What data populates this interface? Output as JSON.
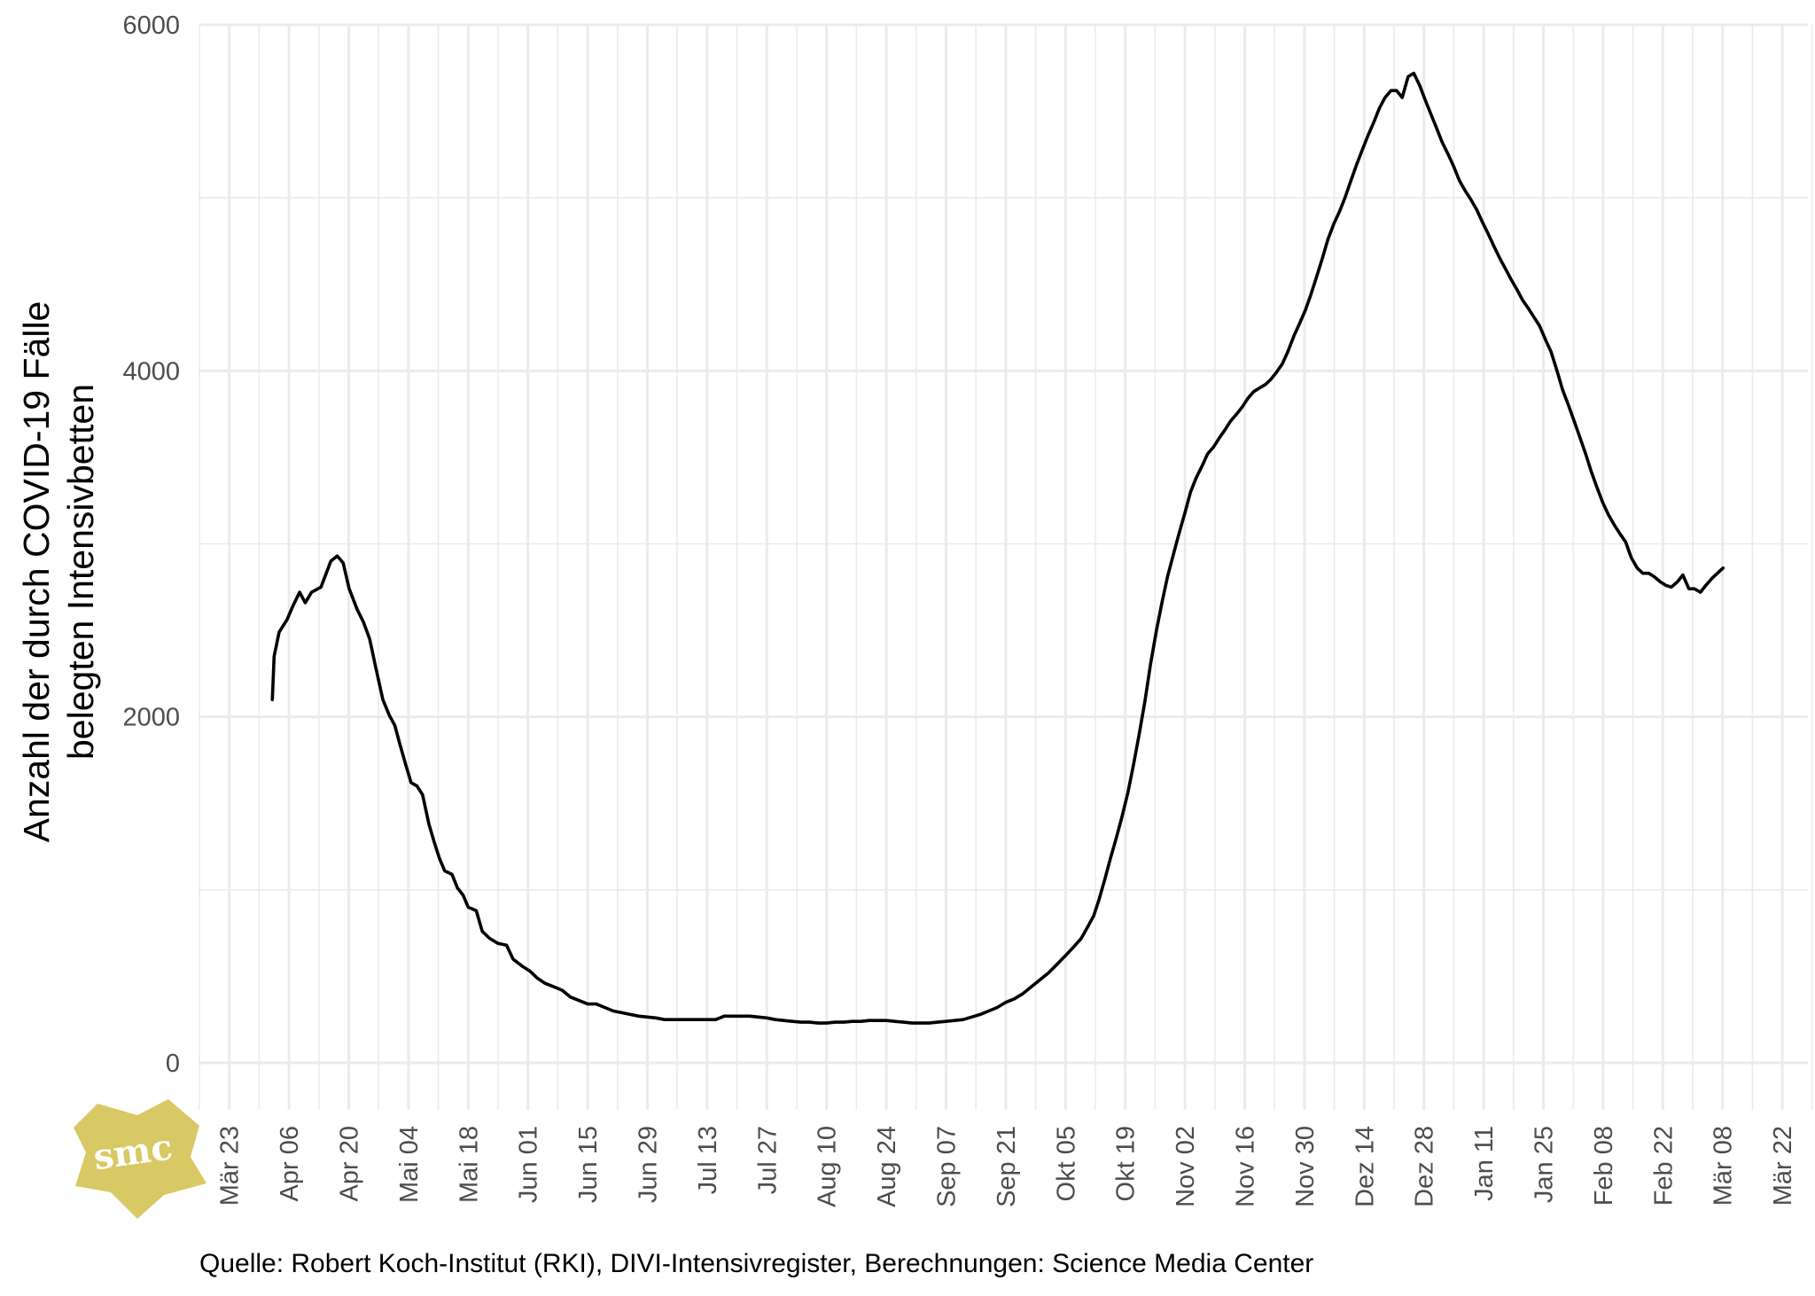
{
  "chart_data": {
    "type": "line",
    "ylabel_line1": "Anzahl der durch COVID-19 Fälle",
    "ylabel_line2": "belegten Intensivbetten",
    "caption": "Quelle: Robert Koch-Institut (RKI), DIVI-Intensivregister, Berechnungen: Science Media Center",
    "ylim": [
      -220,
      6000
    ],
    "y_ticks": [
      0,
      2000,
      4000,
      6000
    ],
    "y_minor": [
      1000,
      3000,
      5000
    ],
    "x_range_days": [
      -7,
      370
    ],
    "x_ticks": [
      {
        "day": 0,
        "label": "Mär 23"
      },
      {
        "day": 14,
        "label": "Apr 06"
      },
      {
        "day": 28,
        "label": "Apr 20"
      },
      {
        "day": 42,
        "label": "Mai 04"
      },
      {
        "day": 56,
        "label": "Mai 18"
      },
      {
        "day": 70,
        "label": "Jun 01"
      },
      {
        "day": 84,
        "label": "Jun 15"
      },
      {
        "day": 98,
        "label": "Jun 29"
      },
      {
        "day": 112,
        "label": "Jul 13"
      },
      {
        "day": 126,
        "label": "Jul 27"
      },
      {
        "day": 140,
        "label": "Aug 10"
      },
      {
        "day": 154,
        "label": "Aug 24"
      },
      {
        "day": 168,
        "label": "Sep 07"
      },
      {
        "day": 182,
        "label": "Sep 21"
      },
      {
        "day": 196,
        "label": "Okt 05"
      },
      {
        "day": 210,
        "label": "Okt 19"
      },
      {
        "day": 224,
        "label": "Nov 02"
      },
      {
        "day": 238,
        "label": "Nov 16"
      },
      {
        "day": 252,
        "label": "Nov 30"
      },
      {
        "day": 266,
        "label": "Dez 14"
      },
      {
        "day": 280,
        "label": "Dez 28"
      },
      {
        "day": 294,
        "label": "Jan 11"
      },
      {
        "day": 308,
        "label": "Jan 25"
      },
      {
        "day": 322,
        "label": "Feb 08"
      },
      {
        "day": 336,
        "label": "Feb 22"
      },
      {
        "day": 350,
        "label": "Mär 08"
      },
      {
        "day": 364,
        "label": "Mär 22"
      }
    ],
    "series": [
      {
        "color": "#000000",
        "points": [
          [
            10.1,
            2100
          ],
          [
            10.5,
            2350
          ],
          [
            11.7,
            2490
          ],
          [
            13.5,
            2560
          ],
          [
            14.9,
            2640
          ],
          [
            16.5,
            2720
          ],
          [
            17.8,
            2660
          ],
          [
            19.3,
            2720
          ],
          [
            21.5,
            2750
          ],
          [
            23.8,
            2900
          ],
          [
            25.3,
            2930
          ],
          [
            26.7,
            2890
          ],
          [
            28.1,
            2740
          ],
          [
            30.0,
            2620
          ],
          [
            31.4,
            2550
          ],
          [
            32.9,
            2450
          ],
          [
            34.3,
            2290
          ],
          [
            36.0,
            2100
          ],
          [
            37.5,
            2010
          ],
          [
            38.8,
            1950
          ],
          [
            40.0,
            1840
          ],
          [
            41.4,
            1720
          ],
          [
            42.6,
            1620
          ],
          [
            44.0,
            1600
          ],
          [
            45.3,
            1550
          ],
          [
            46.8,
            1380
          ],
          [
            48.1,
            1270
          ],
          [
            49.3,
            1180
          ],
          [
            50.5,
            1110
          ],
          [
            52.2,
            1090
          ],
          [
            53.5,
            1010
          ],
          [
            54.8,
            970
          ],
          [
            56.0,
            900
          ],
          [
            57.9,
            880
          ],
          [
            59.3,
            760
          ],
          [
            61.0,
            720
          ],
          [
            63.0,
            690
          ],
          [
            65.0,
            680
          ],
          [
            66.5,
            600
          ],
          [
            68.6,
            560
          ],
          [
            70.5,
            530
          ],
          [
            72.2,
            490
          ],
          [
            74.0,
            460
          ],
          [
            76.0,
            440
          ],
          [
            78.0,
            420
          ],
          [
            80.0,
            380
          ],
          [
            82.0,
            360
          ],
          [
            84.0,
            340
          ],
          [
            86.0,
            340
          ],
          [
            88.0,
            320
          ],
          [
            90.0,
            300
          ],
          [
            92.0,
            290
          ],
          [
            94.0,
            280
          ],
          [
            96.0,
            270
          ],
          [
            98.0,
            265
          ],
          [
            100.0,
            260
          ],
          [
            102.0,
            250
          ],
          [
            104.0,
            250
          ],
          [
            106.0,
            250
          ],
          [
            108.0,
            250
          ],
          [
            110.0,
            250
          ],
          [
            112.0,
            250
          ],
          [
            114.0,
            250
          ],
          [
            116.0,
            270
          ],
          [
            118.0,
            270
          ],
          [
            120.0,
            270
          ],
          [
            122.0,
            270
          ],
          [
            124.0,
            265
          ],
          [
            126.0,
            260
          ],
          [
            128.0,
            250
          ],
          [
            130.0,
            245
          ],
          [
            132.0,
            240
          ],
          [
            134.0,
            235
          ],
          [
            136.0,
            235
          ],
          [
            138.0,
            230
          ],
          [
            140.0,
            230
          ],
          [
            142.0,
            235
          ],
          [
            144.0,
            235
          ],
          [
            146.0,
            240
          ],
          [
            148.0,
            240
          ],
          [
            150.0,
            245
          ],
          [
            152.0,
            245
          ],
          [
            154.0,
            245
          ],
          [
            156.0,
            240
          ],
          [
            158.0,
            235
          ],
          [
            160.0,
            230
          ],
          [
            162.0,
            230
          ],
          [
            164.0,
            230
          ],
          [
            166.0,
            235
          ],
          [
            168.0,
            240
          ],
          [
            170.0,
            245
          ],
          [
            172.0,
            250
          ],
          [
            174.0,
            265
          ],
          [
            176.0,
            280
          ],
          [
            178.0,
            300
          ],
          [
            180.0,
            320
          ],
          [
            182.0,
            350
          ],
          [
            184.0,
            370
          ],
          [
            186.0,
            400
          ],
          [
            188.0,
            440
          ],
          [
            190.0,
            480
          ],
          [
            192.0,
            520
          ],
          [
            194.0,
            570
          ],
          [
            196.0,
            620
          ],
          [
            197.9,
            670
          ],
          [
            199.7,
            720
          ],
          [
            201.3,
            790
          ],
          [
            202.6,
            850
          ],
          [
            203.8,
            940
          ],
          [
            205.2,
            1060
          ],
          [
            206.5,
            1180
          ],
          [
            207.9,
            1300
          ],
          [
            209.2,
            1420
          ],
          [
            210.6,
            1560
          ],
          [
            211.9,
            1720
          ],
          [
            213.2,
            1890
          ],
          [
            214.6,
            2090
          ],
          [
            215.9,
            2300
          ],
          [
            217.3,
            2500
          ],
          [
            218.6,
            2660
          ],
          [
            219.9,
            2810
          ],
          [
            221.3,
            2940
          ],
          [
            222.6,
            3060
          ],
          [
            224.0,
            3180
          ],
          [
            225.3,
            3300
          ],
          [
            226.6,
            3380
          ],
          [
            228.0,
            3450
          ],
          [
            229.3,
            3520
          ],
          [
            230.7,
            3560
          ],
          [
            232.0,
            3610
          ],
          [
            233.4,
            3660
          ],
          [
            234.7,
            3710
          ],
          [
            236.1,
            3750
          ],
          [
            237.4,
            3790
          ],
          [
            238.7,
            3840
          ],
          [
            240.1,
            3880
          ],
          [
            241.4,
            3900
          ],
          [
            242.8,
            3920
          ],
          [
            244.1,
            3950
          ],
          [
            245.4,
            3990
          ],
          [
            246.8,
            4040
          ],
          [
            248.1,
            4110
          ],
          [
            249.5,
            4200
          ],
          [
            250.8,
            4270
          ],
          [
            252.2,
            4350
          ],
          [
            253.5,
            4440
          ],
          [
            254.8,
            4540
          ],
          [
            256.2,
            4650
          ],
          [
            257.5,
            4760
          ],
          [
            258.9,
            4850
          ],
          [
            260.2,
            4920
          ],
          [
            261.5,
            5000
          ],
          [
            262.9,
            5100
          ],
          [
            264.2,
            5190
          ],
          [
            265.6,
            5280
          ],
          [
            266.9,
            5360
          ],
          [
            268.3,
            5440
          ],
          [
            269.6,
            5520
          ],
          [
            270.9,
            5580
          ],
          [
            272.3,
            5620
          ],
          [
            273.6,
            5620
          ],
          [
            274.9,
            5580
          ],
          [
            276.3,
            5700
          ],
          [
            277.6,
            5720
          ],
          [
            279.0,
            5650
          ],
          [
            280.4,
            5560
          ],
          [
            281.7,
            5480
          ],
          [
            283.0,
            5400
          ],
          [
            284.3,
            5320
          ],
          [
            285.7,
            5250
          ],
          [
            287.0,
            5180
          ],
          [
            288.3,
            5100
          ],
          [
            289.7,
            5040
          ],
          [
            291.0,
            4990
          ],
          [
            292.4,
            4930
          ],
          [
            293.7,
            4860
          ],
          [
            295.1,
            4790
          ],
          [
            296.4,
            4720
          ],
          [
            297.8,
            4650
          ],
          [
            299.1,
            4590
          ],
          [
            300.4,
            4530
          ],
          [
            301.8,
            4470
          ],
          [
            303.1,
            4410
          ],
          [
            304.5,
            4360
          ],
          [
            305.8,
            4310
          ],
          [
            307.1,
            4260
          ],
          [
            308.5,
            4180
          ],
          [
            309.8,
            4110
          ],
          [
            311.2,
            4000
          ],
          [
            312.5,
            3890
          ],
          [
            313.9,
            3800
          ],
          [
            315.2,
            3710
          ],
          [
            316.5,
            3620
          ],
          [
            317.9,
            3520
          ],
          [
            319.2,
            3420
          ],
          [
            320.5,
            3330
          ],
          [
            321.9,
            3240
          ],
          [
            323.2,
            3170
          ],
          [
            324.6,
            3110
          ],
          [
            325.9,
            3060
          ],
          [
            327.3,
            3010
          ],
          [
            328.6,
            2920
          ],
          [
            330.0,
            2860
          ],
          [
            331.3,
            2830
          ],
          [
            332.7,
            2830
          ],
          [
            334.0,
            2810
          ],
          [
            335.4,
            2780
          ],
          [
            336.7,
            2760
          ],
          [
            338.0,
            2750
          ],
          [
            339.4,
            2780
          ],
          [
            340.7,
            2820
          ],
          [
            342.1,
            2740
          ],
          [
            343.4,
            2740
          ],
          [
            344.8,
            2720
          ],
          [
            346.1,
            2760
          ],
          [
            347.5,
            2800
          ],
          [
            348.8,
            2830
          ],
          [
            350.1,
            2860
          ]
        ]
      }
    ]
  },
  "logo": {
    "text": "smc",
    "color": "#d8c964"
  }
}
